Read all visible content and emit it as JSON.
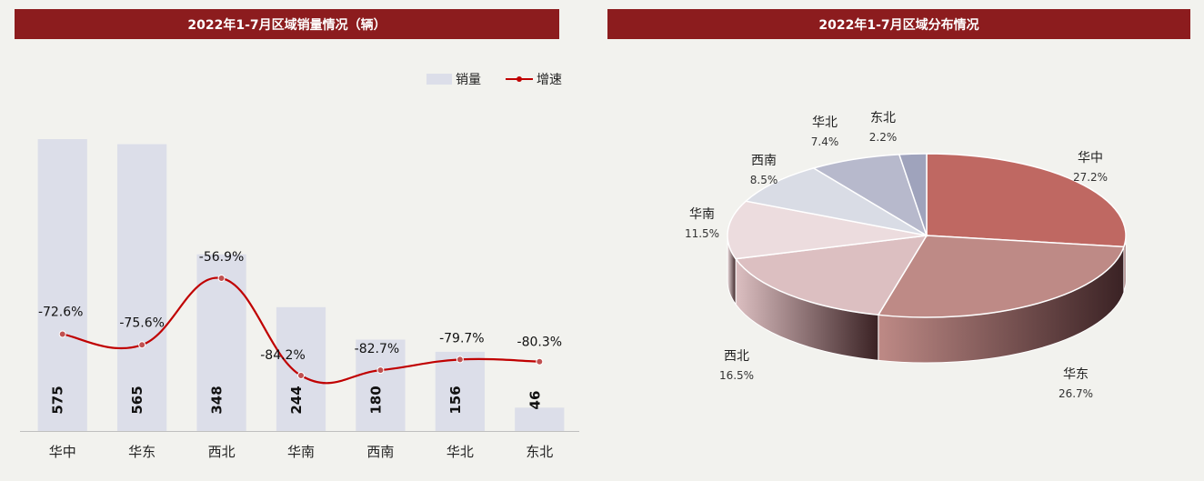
{
  "chart_data": [
    {
      "type": "bar",
      "title": "2022年1-7月区域销量情况（辆）",
      "categories": [
        "华中",
        "华东",
        "西北",
        "华南",
        "西南",
        "华北",
        "东北"
      ],
      "series": [
        {
          "name": "销量",
          "type": "bar",
          "values": [
            575,
            565,
            348,
            244,
            180,
            156,
            46
          ],
          "color": "#dcdee9"
        },
        {
          "name": "增速",
          "type": "line",
          "values": [
            -72.6,
            -75.6,
            -56.9,
            -84.2,
            -82.7,
            -79.7,
            -80.3
          ],
          "labels": [
            "-72.6%",
            "-75.6%",
            "-56.9%",
            "-84.2%",
            "-82.7%",
            "-79.7%",
            "-80.3%"
          ],
          "color": "#c00000"
        }
      ],
      "legend_position": "top-right",
      "grid": false
    },
    {
      "type": "pie",
      "title": "2022年1-7月区域分布情况",
      "slices": [
        {
          "label": "华中",
          "value": 27.2,
          "value_label": "27.2%",
          "color": "#bf6862"
        },
        {
          "label": "华东",
          "value": 26.7,
          "value_label": "26.7%",
          "color": "#be8a86"
        },
        {
          "label": "西北",
          "value": 16.5,
          "value_label": "16.5%",
          "color": "#dcbfc1"
        },
        {
          "label": "华南",
          "value": 11.5,
          "value_label": "11.5%",
          "color": "#ecdcde"
        },
        {
          "label": "西南",
          "value": 8.5,
          "value_label": "8.5%",
          "color": "#d9dce5"
        },
        {
          "label": "华北",
          "value": 7.4,
          "value_label": "7.4%",
          "color": "#b7b9cc"
        },
        {
          "label": "东北",
          "value": 2.2,
          "value_label": "2.2%",
          "color": "#9fa3bc"
        }
      ]
    }
  ]
}
